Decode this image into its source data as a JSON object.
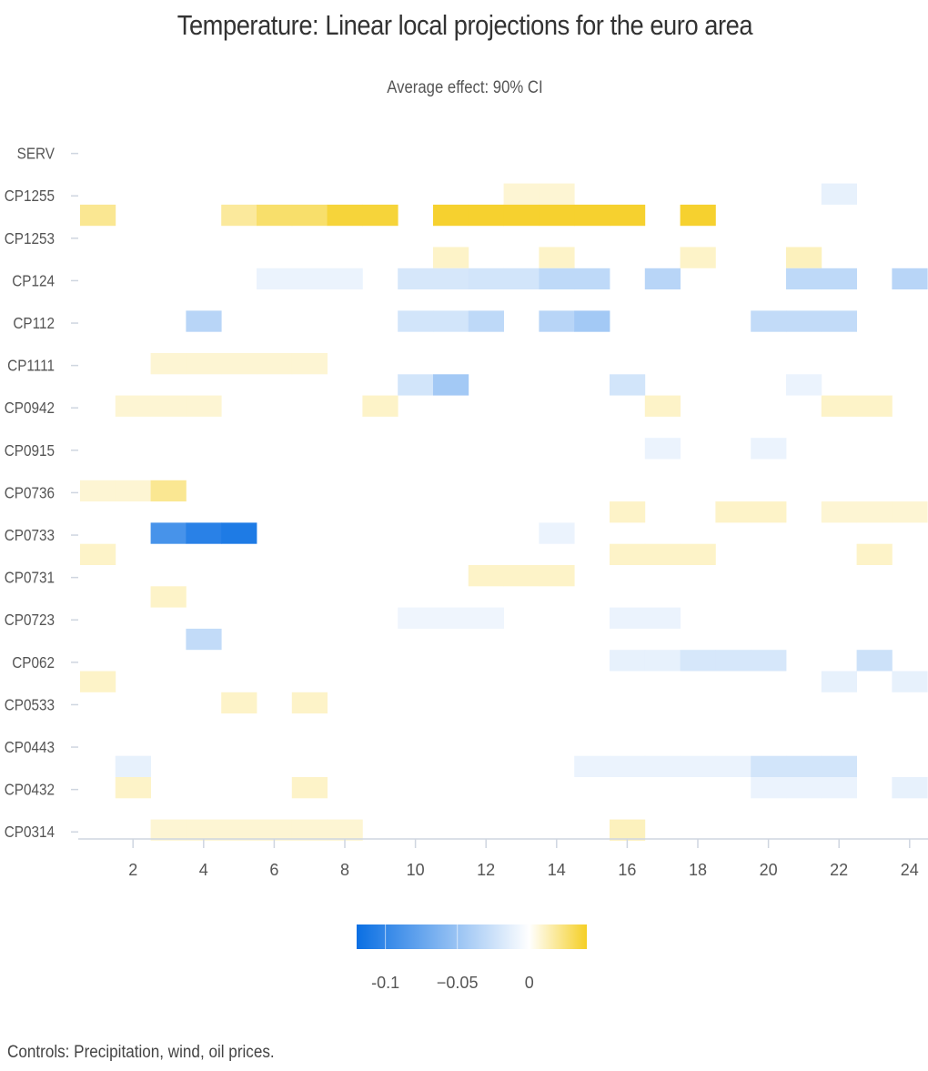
{
  "chart_data": {
    "type": "heatmap",
    "title": "Temperature: Linear local projections for the euro area",
    "subtitle": "Average effect: 90% CI",
    "caption": "Controls: Precipitation, wind, oil prices.",
    "x_ticks": [
      2,
      4,
      6,
      8,
      10,
      12,
      14,
      16,
      18,
      20,
      22,
      24
    ],
    "x_range": [
      1,
      24
    ],
    "categories": [
      "SERV",
      "CP1255",
      "CP1253",
      "CP124",
      "CP112",
      "CP1111",
      "CP0942",
      "CP0915",
      "CP0736",
      "CP0733",
      "CP0731",
      "CP0723",
      "CP062",
      "CP0533",
      "CP0443",
      "CP0432",
      "CP0314"
    ],
    "colorbar": {
      "ticks": [
        -0.1,
        -0.05,
        0
      ],
      "tick_labels": [
        "-0.1",
        "−0.05",
        "0"
      ],
      "min": -0.12,
      "max": 0.04,
      "colors": {
        "negative": "#0a6fe3",
        "zero": "#ffffff",
        "positive": "#f5cf24"
      }
    },
    "cells": [
      {
        "y": "CP1255",
        "band": "upper",
        "x": 13,
        "v": 0.008
      },
      {
        "y": "CP1255",
        "band": "upper",
        "x": 14,
        "v": 0.008
      },
      {
        "y": "CP1255",
        "band": "upper",
        "x": 22,
        "v": -0.012
      },
      {
        "y": "CP1255",
        "band": "lower",
        "x": 1,
        "v": 0.02
      },
      {
        "y": "CP1255",
        "band": "lower",
        "x": 5,
        "v": 0.018
      },
      {
        "y": "CP1255",
        "band": "lower",
        "x": 6,
        "v": 0.027
      },
      {
        "y": "CP1255",
        "band": "lower",
        "x": 7,
        "v": 0.027
      },
      {
        "y": "CP1255",
        "band": "lower",
        "x": 8,
        "v": 0.036
      },
      {
        "y": "CP1255",
        "band": "lower",
        "x": 9,
        "v": 0.036
      },
      {
        "y": "CP1255",
        "band": "lower",
        "x": 11,
        "v": 0.038
      },
      {
        "y": "CP1255",
        "band": "lower",
        "x": 12,
        "v": 0.038
      },
      {
        "y": "CP1255",
        "band": "lower",
        "x": 13,
        "v": 0.038
      },
      {
        "y": "CP1255",
        "band": "lower",
        "x": 14,
        "v": 0.038
      },
      {
        "y": "CP1255",
        "band": "lower",
        "x": 15,
        "v": 0.038
      },
      {
        "y": "CP1255",
        "band": "lower",
        "x": 16,
        "v": 0.038
      },
      {
        "y": "CP1255",
        "band": "lower",
        "x": 18,
        "v": 0.038
      },
      {
        "y": "CP1253",
        "band": "lower",
        "x": 11,
        "v": 0.01
      },
      {
        "y": "CP1253",
        "band": "lower",
        "x": 14,
        "v": 0.01
      },
      {
        "y": "CP1253",
        "band": "lower",
        "x": 18,
        "v": 0.01
      },
      {
        "y": "CP1253",
        "band": "lower",
        "x": 21,
        "v": 0.012
      },
      {
        "y": "CP124",
        "band": "upper",
        "x": 6,
        "v": -0.01
      },
      {
        "y": "CP124",
        "band": "upper",
        "x": 7,
        "v": -0.01
      },
      {
        "y": "CP124",
        "band": "upper",
        "x": 8,
        "v": -0.01
      },
      {
        "y": "CP124",
        "band": "upper",
        "x": 10,
        "v": -0.02
      },
      {
        "y": "CP124",
        "band": "upper",
        "x": 11,
        "v": -0.02
      },
      {
        "y": "CP124",
        "band": "upper",
        "x": 12,
        "v": -0.022
      },
      {
        "y": "CP124",
        "band": "upper",
        "x": 13,
        "v": -0.022
      },
      {
        "y": "CP124",
        "band": "upper",
        "x": 14,
        "v": -0.032
      },
      {
        "y": "CP124",
        "band": "upper",
        "x": 15,
        "v": -0.032
      },
      {
        "y": "CP124",
        "band": "upper",
        "x": 17,
        "v": -0.035
      },
      {
        "y": "CP124",
        "band": "upper",
        "x": 21,
        "v": -0.032
      },
      {
        "y": "CP124",
        "band": "upper",
        "x": 22,
        "v": -0.032
      },
      {
        "y": "CP124",
        "band": "upper",
        "x": 24,
        "v": -0.035
      },
      {
        "y": "CP112",
        "band": "upper",
        "x": 4,
        "v": -0.035
      },
      {
        "y": "CP112",
        "band": "upper",
        "x": 10,
        "v": -0.022
      },
      {
        "y": "CP112",
        "band": "upper",
        "x": 11,
        "v": -0.022
      },
      {
        "y": "CP112",
        "band": "upper",
        "x": 12,
        "v": -0.032
      },
      {
        "y": "CP112",
        "band": "upper",
        "x": 14,
        "v": -0.035
      },
      {
        "y": "CP112",
        "band": "upper",
        "x": 15,
        "v": -0.045
      },
      {
        "y": "CP112",
        "band": "upper",
        "x": 20,
        "v": -0.03
      },
      {
        "y": "CP112",
        "band": "upper",
        "x": 21,
        "v": -0.03
      },
      {
        "y": "CP112",
        "band": "upper",
        "x": 22,
        "v": -0.03
      },
      {
        "y": "CP1111",
        "band": "upper",
        "x": 3,
        "v": 0.008
      },
      {
        "y": "CP1111",
        "band": "upper",
        "x": 4,
        "v": 0.008
      },
      {
        "y": "CP1111",
        "band": "upper",
        "x": 5,
        "v": 0.008
      },
      {
        "y": "CP1111",
        "band": "upper",
        "x": 6,
        "v": 0.008
      },
      {
        "y": "CP1111",
        "band": "upper",
        "x": 7,
        "v": 0.008
      },
      {
        "y": "CP1111",
        "band": "lower",
        "x": 10,
        "v": -0.022
      },
      {
        "y": "CP1111",
        "band": "lower",
        "x": 11,
        "v": -0.045
      },
      {
        "y": "CP1111",
        "band": "lower",
        "x": 16,
        "v": -0.022
      },
      {
        "y": "CP1111",
        "band": "lower",
        "x": 21,
        "v": -0.01
      },
      {
        "y": "CP0942",
        "band": "upper",
        "x": 2,
        "v": 0.008
      },
      {
        "y": "CP0942",
        "band": "upper",
        "x": 3,
        "v": 0.008
      },
      {
        "y": "CP0942",
        "band": "upper",
        "x": 4,
        "v": 0.008
      },
      {
        "y": "CP0942",
        "band": "upper",
        "x": 9,
        "v": 0.01
      },
      {
        "y": "CP0942",
        "band": "upper",
        "x": 17,
        "v": 0.01
      },
      {
        "y": "CP0942",
        "band": "upper",
        "x": 22,
        "v": 0.01
      },
      {
        "y": "CP0942",
        "band": "upper",
        "x": 23,
        "v": 0.01
      },
      {
        "y": "CP0915",
        "band": "upper",
        "x": 17,
        "v": -0.01
      },
      {
        "y": "CP0915",
        "band": "upper",
        "x": 20,
        "v": -0.01
      },
      {
        "y": "CP0736",
        "band": "upper",
        "x": 1,
        "v": 0.008
      },
      {
        "y": "CP0736",
        "band": "upper",
        "x": 2,
        "v": 0.008
      },
      {
        "y": "CP0736",
        "band": "upper",
        "x": 3,
        "v": 0.02
      },
      {
        "y": "CP0736",
        "band": "lower",
        "x": 16,
        "v": 0.01
      },
      {
        "y": "CP0736",
        "band": "lower",
        "x": 19,
        "v": 0.01
      },
      {
        "y": "CP0736",
        "band": "lower",
        "x": 20,
        "v": 0.01
      },
      {
        "y": "CP0736",
        "band": "lower",
        "x": 22,
        "v": 0.008
      },
      {
        "y": "CP0736",
        "band": "lower",
        "x": 23,
        "v": 0.008
      },
      {
        "y": "CP0736",
        "band": "lower",
        "x": 24,
        "v": 0.008
      },
      {
        "y": "CP0733",
        "band": "upper",
        "x": 3,
        "v": -0.09
      },
      {
        "y": "CP0733",
        "band": "upper",
        "x": 4,
        "v": -0.105
      },
      {
        "y": "CP0733",
        "band": "upper",
        "x": 5,
        "v": -0.11
      },
      {
        "y": "CP0733",
        "band": "upper",
        "x": 14,
        "v": -0.01
      },
      {
        "y": "CP0733",
        "band": "lower",
        "x": 1,
        "v": 0.01
      },
      {
        "y": "CP0733",
        "band": "lower",
        "x": 16,
        "v": 0.01
      },
      {
        "y": "CP0733",
        "band": "lower",
        "x": 17,
        "v": 0.01
      },
      {
        "y": "CP0733",
        "band": "lower",
        "x": 18,
        "v": 0.01
      },
      {
        "y": "CP0733",
        "band": "lower",
        "x": 23,
        "v": 0.01
      },
      {
        "y": "CP0731",
        "band": "upper",
        "x": 12,
        "v": 0.01
      },
      {
        "y": "CP0731",
        "band": "upper",
        "x": 13,
        "v": 0.01
      },
      {
        "y": "CP0731",
        "band": "upper",
        "x": 14,
        "v": 0.01
      },
      {
        "y": "CP0731",
        "band": "lower",
        "x": 3,
        "v": 0.01
      },
      {
        "y": "CP0723",
        "band": "upper",
        "x": 10,
        "v": -0.008
      },
      {
        "y": "CP0723",
        "band": "upper",
        "x": 11,
        "v": -0.008
      },
      {
        "y": "CP0723",
        "band": "upper",
        "x": 12,
        "v": -0.008
      },
      {
        "y": "CP0723",
        "band": "upper",
        "x": 16,
        "v": -0.01
      },
      {
        "y": "CP0723",
        "band": "upper",
        "x": 17,
        "v": -0.01
      },
      {
        "y": "CP0723",
        "band": "lower",
        "x": 4,
        "v": -0.03
      },
      {
        "y": "CP062",
        "band": "upper",
        "x": 16,
        "v": -0.012
      },
      {
        "y": "CP062",
        "band": "upper",
        "x": 17,
        "v": -0.012
      },
      {
        "y": "CP062",
        "band": "upper",
        "x": 18,
        "v": -0.02
      },
      {
        "y": "CP062",
        "band": "upper",
        "x": 19,
        "v": -0.02
      },
      {
        "y": "CP062",
        "band": "upper",
        "x": 20,
        "v": -0.02
      },
      {
        "y": "CP062",
        "band": "upper",
        "x": 23,
        "v": -0.025
      },
      {
        "y": "CP062",
        "band": "lower",
        "x": 1,
        "v": 0.01
      },
      {
        "y": "CP062",
        "band": "lower",
        "x": 22,
        "v": -0.012
      },
      {
        "y": "CP062",
        "band": "lower",
        "x": 24,
        "v": -0.012
      },
      {
        "y": "CP0533",
        "band": "upper",
        "x": 5,
        "v": 0.01
      },
      {
        "y": "CP0533",
        "band": "upper",
        "x": 7,
        "v": 0.01
      },
      {
        "y": "CP0443",
        "band": "lower",
        "x": 2,
        "v": -0.012
      },
      {
        "y": "CP0443",
        "band": "lower",
        "x": 15,
        "v": -0.01
      },
      {
        "y": "CP0443",
        "band": "lower",
        "x": 16,
        "v": -0.01
      },
      {
        "y": "CP0443",
        "band": "lower",
        "x": 17,
        "v": -0.01
      },
      {
        "y": "CP0443",
        "band": "lower",
        "x": 18,
        "v": -0.01
      },
      {
        "y": "CP0443",
        "band": "lower",
        "x": 19,
        "v": -0.01
      },
      {
        "y": "CP0443",
        "band": "lower",
        "x": 20,
        "v": -0.022
      },
      {
        "y": "CP0443",
        "band": "lower",
        "x": 21,
        "v": -0.022
      },
      {
        "y": "CP0443",
        "band": "lower",
        "x": 22,
        "v": -0.022
      },
      {
        "y": "CP0432",
        "band": "upper",
        "x": 2,
        "v": 0.01
      },
      {
        "y": "CP0432",
        "band": "upper",
        "x": 7,
        "v": 0.01
      },
      {
        "y": "CP0432",
        "band": "upper",
        "x": 20,
        "v": -0.01
      },
      {
        "y": "CP0432",
        "band": "upper",
        "x": 21,
        "v": -0.01
      },
      {
        "y": "CP0432",
        "band": "upper",
        "x": 22,
        "v": -0.01
      },
      {
        "y": "CP0432",
        "band": "upper",
        "x": 24,
        "v": -0.012
      },
      {
        "y": "CP0314",
        "band": "upper",
        "x": 3,
        "v": 0.008
      },
      {
        "y": "CP0314",
        "band": "upper",
        "x": 4,
        "v": 0.008
      },
      {
        "y": "CP0314",
        "band": "upper",
        "x": 5,
        "v": 0.008
      },
      {
        "y": "CP0314",
        "band": "upper",
        "x": 6,
        "v": 0.008
      },
      {
        "y": "CP0314",
        "band": "upper",
        "x": 7,
        "v": 0.008
      },
      {
        "y": "CP0314",
        "band": "upper",
        "x": 8,
        "v": 0.008
      },
      {
        "y": "CP0314",
        "band": "upper",
        "x": 16,
        "v": 0.012
      }
    ]
  }
}
